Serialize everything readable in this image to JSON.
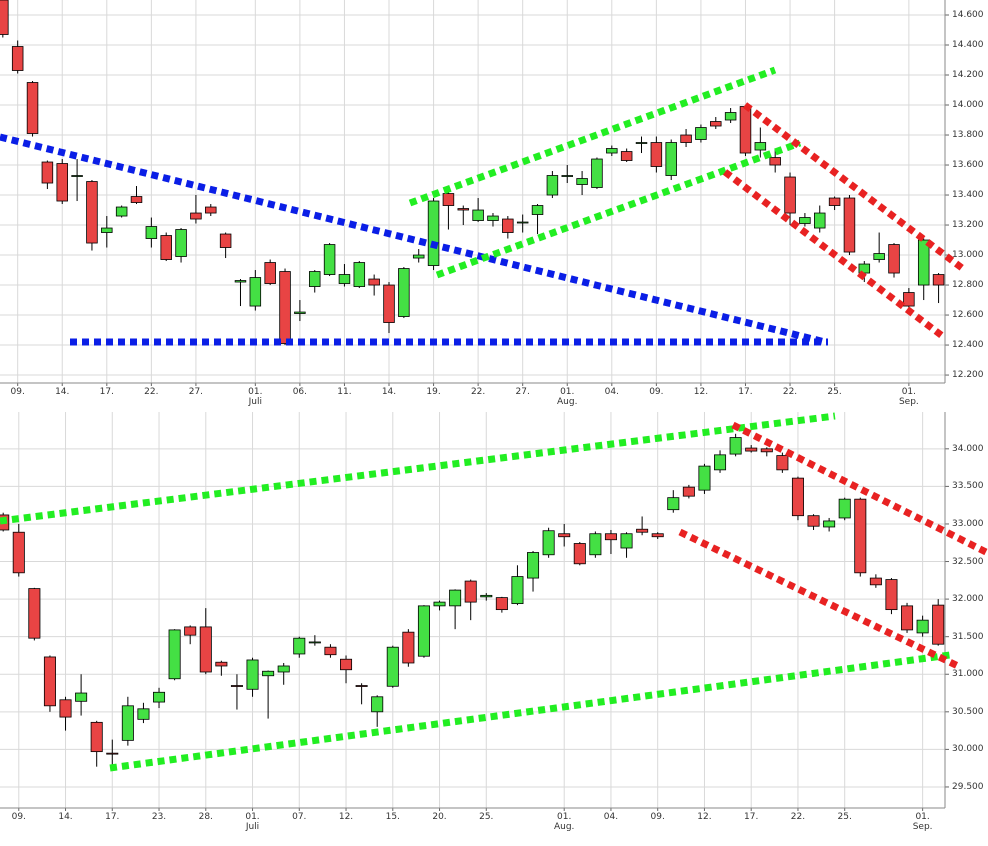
{
  "chart_data": [
    {
      "type": "candlestick",
      "up_color": "#44e044",
      "down_color": "#e84444",
      "grid": true,
      "categories": [
        null,
        "09.",
        null,
        null,
        "14.",
        null,
        null,
        "17.",
        null,
        null,
        "22.",
        null,
        null,
        "27.",
        null,
        null,
        null,
        "01.\nJuli",
        null,
        null,
        "06.",
        null,
        null,
        "11.",
        null,
        null,
        "14.",
        null,
        null,
        "19.",
        null,
        null,
        "22.",
        null,
        null,
        "27.",
        null,
        null,
        "01.\nAug.",
        null,
        null,
        "04.",
        null,
        null,
        "09.",
        null,
        null,
        "12.",
        null,
        null,
        "17.",
        null,
        null,
        "22.",
        null,
        null,
        "25.",
        null,
        null,
        null,
        null,
        "01.\nSep.",
        null,
        null
      ],
      "series": [
        {
          "name": "open",
          "values": [
            14.7,
            14.39,
            14.15,
            13.62,
            13.61,
            13.53,
            13.49,
            13.15,
            13.26,
            13.39,
            13.11,
            13.13,
            12.99,
            13.28,
            13.32,
            13.14,
            12.82,
            12.66,
            12.95,
            12.89,
            12.61,
            12.79,
            12.87,
            12.81,
            12.79,
            12.84,
            12.8,
            12.59,
            12.98,
            12.93,
            13.41,
            13.31,
            13.23,
            13.23,
            13.24,
            13.22,
            13.27,
            13.4,
            13.53,
            13.47,
            13.45,
            13.68,
            13.69,
            13.75,
            13.75,
            13.53,
            13.8,
            13.77,
            13.89,
            13.9,
            13.99,
            13.7,
            13.65,
            13.52,
            13.21,
            13.18,
            13.38,
            13.38,
            12.88,
            12.97,
            13.07,
            12.75,
            12.8,
            12.87
          ]
        },
        {
          "name": "high",
          "values": [
            14.7,
            14.43,
            14.16,
            13.63,
            13.64,
            13.64,
            13.5,
            13.26,
            13.33,
            13.46,
            13.25,
            13.15,
            13.18,
            13.4,
            13.34,
            13.15,
            12.84,
            12.9,
            12.97,
            12.91,
            12.7,
            12.9,
            13.08,
            12.94,
            12.96,
            12.87,
            12.82,
            12.92,
            13.04,
            13.38,
            13.45,
            13.33,
            13.38,
            13.28,
            13.26,
            13.27,
            13.34,
            13.56,
            13.6,
            13.56,
            13.65,
            13.73,
            13.71,
            13.79,
            13.79,
            13.77,
            13.84,
            13.87,
            13.92,
            13.98,
            14.0,
            13.85,
            13.7,
            13.55,
            13.28,
            13.33,
            13.39,
            13.4,
            12.96,
            13.15,
            13.08,
            12.78,
            13.11,
            12.88
          ]
        },
        {
          "name": "low",
          "values": [
            14.45,
            14.21,
            13.79,
            13.44,
            13.34,
            13.36,
            13.03,
            13.05,
            13.25,
            13.34,
            13.05,
            12.96,
            12.95,
            13.21,
            13.26,
            12.98,
            12.66,
            12.63,
            12.8,
            12.4,
            12.56,
            12.75,
            12.86,
            12.79,
            12.78,
            12.73,
            12.48,
            12.58,
            12.95,
            12.9,
            13.17,
            13.2,
            13.22,
            13.19,
            13.11,
            13.15,
            13.14,
            13.38,
            13.48,
            13.4,
            13.44,
            13.66,
            13.62,
            13.68,
            13.55,
            13.5,
            13.72,
            13.75,
            13.84,
            13.88,
            13.66,
            13.65,
            13.55,
            13.2,
            13.19,
            13.15,
            13.3,
            13.0,
            12.82,
            12.95,
            12.85,
            12.64,
            12.7,
            12.68
          ]
        },
        {
          "name": "close",
          "values": [
            14.47,
            14.23,
            13.81,
            13.48,
            13.36,
            13.53,
            13.08,
            13.18,
            13.32,
            13.35,
            13.19,
            12.97,
            13.17,
            13.24,
            13.28,
            13.05,
            12.83,
            12.85,
            12.81,
            12.41,
            12.62,
            12.89,
            13.07,
            12.87,
            12.95,
            12.8,
            12.55,
            12.91,
            13.0,
            13.36,
            13.33,
            13.3,
            13.3,
            13.26,
            13.15,
            13.22,
            13.33,
            13.53,
            13.53,
            13.51,
            13.64,
            13.71,
            13.63,
            13.75,
            13.59,
            13.75,
            13.75,
            13.85,
            13.86,
            13.95,
            13.68,
            13.75,
            13.6,
            13.28,
            13.25,
            13.28,
            13.33,
            13.02,
            12.94,
            13.01,
            12.88,
            12.66,
            13.1,
            12.8
          ]
        }
      ],
      "ylim": [
        12.147,
        14.7
      ],
      "yticks": [
        {
          "value": 12.2,
          "label": "12.200"
        },
        {
          "value": 12.4,
          "label": "12.400"
        },
        {
          "value": 12.6,
          "label": "12.600"
        },
        {
          "value": 12.8,
          "label": "12.800"
        },
        {
          "value": 13.0,
          "label": "13.000"
        },
        {
          "value": 13.2,
          "label": "13.200"
        },
        {
          "value": 13.4,
          "label": "13.400"
        },
        {
          "value": 13.6,
          "label": "13.600"
        },
        {
          "value": 13.8,
          "label": "13.800"
        },
        {
          "value": 14.0,
          "label": "14.000"
        },
        {
          "value": 14.2,
          "label": "14.200"
        },
        {
          "value": 14.4,
          "label": "14.400"
        },
        {
          "value": 14.6,
          "label": "14.600"
        }
      ]
    },
    {
      "type": "candlestick",
      "up_color": "#44e044",
      "down_color": "#e84444",
      "grid": true,
      "categories": [
        null,
        "09.",
        null,
        null,
        "14.",
        null,
        null,
        "17.",
        null,
        null,
        "23.",
        null,
        null,
        "28.",
        null,
        null,
        "01.\nJuli",
        null,
        null,
        "07.",
        null,
        null,
        "12.",
        null,
        null,
        "15.",
        null,
        null,
        "20.",
        null,
        null,
        "25.",
        null,
        null,
        null,
        null,
        "01.\nAug.",
        null,
        null,
        "04.",
        null,
        null,
        "09.",
        null,
        null,
        "12.",
        null,
        null,
        "17.",
        null,
        null,
        "22.",
        null,
        null,
        "25.",
        null,
        null,
        null,
        null,
        "01.\nSep.",
        null
      ],
      "series": [
        {
          "name": "open",
          "values": [
            33.12,
            32.89,
            32.14,
            31.23,
            30.66,
            30.64,
            30.36,
            29.95,
            30.12,
            30.4,
            30.63,
            30.94,
            31.63,
            31.63,
            31.16,
            30.85,
            30.8,
            30.98,
            31.03,
            31.27,
            31.42,
            31.36,
            31.2,
            30.85,
            30.5,
            30.84,
            31.56,
            31.24,
            31.91,
            31.91,
            32.24,
            32.03,
            32.02,
            31.94,
            32.28,
            32.59,
            32.87,
            32.74,
            32.59,
            32.87,
            32.68,
            32.93,
            32.87,
            33.19,
            33.49,
            33.45,
            33.72,
            33.93,
            34.01,
            34.0,
            33.91,
            33.61,
            33.11,
            32.96,
            33.08,
            33.33,
            32.28,
            32.26,
            31.91,
            31.55,
            31.92
          ]
        },
        {
          "name": "high",
          "values": [
            33.15,
            33.0,
            32.15,
            31.25,
            30.7,
            31.0,
            30.38,
            30.13,
            30.7,
            30.62,
            30.82,
            31.6,
            31.65,
            31.88,
            31.18,
            31.0,
            31.22,
            31.05,
            31.15,
            31.5,
            31.52,
            31.4,
            31.25,
            30.88,
            30.72,
            31.38,
            31.6,
            31.92,
            31.98,
            32.13,
            32.26,
            32.08,
            32.03,
            32.45,
            32.64,
            32.95,
            33.0,
            32.76,
            32.9,
            32.92,
            32.89,
            33.1,
            32.89,
            33.45,
            33.52,
            33.8,
            33.98,
            34.2,
            34.05,
            34.02,
            33.95,
            33.63,
            33.13,
            33.08,
            33.35,
            33.35,
            32.33,
            32.28,
            31.95,
            31.78,
            32.0
          ]
        },
        {
          "name": "low",
          "values": [
            32.9,
            32.3,
            31.45,
            30.5,
            30.25,
            30.45,
            29.77,
            29.78,
            30.05,
            30.35,
            30.55,
            30.92,
            31.4,
            31.0,
            30.98,
            30.53,
            30.7,
            30.41,
            30.86,
            31.22,
            31.38,
            31.22,
            30.88,
            30.6,
            30.3,
            30.82,
            31.1,
            31.22,
            31.85,
            31.6,
            31.72,
            31.98,
            31.82,
            31.92,
            32.1,
            32.55,
            32.7,
            32.45,
            32.55,
            32.6,
            32.55,
            32.85,
            32.8,
            33.15,
            33.34,
            33.4,
            33.68,
            33.9,
            33.95,
            33.9,
            33.68,
            33.05,
            32.92,
            32.9,
            33.05,
            32.3,
            32.15,
            31.8,
            31.55,
            31.5,
            31.38
          ]
        },
        {
          "name": "close",
          "values": [
            32.92,
            32.35,
            31.48,
            30.58,
            30.43,
            30.75,
            29.97,
            29.94,
            30.58,
            30.54,
            30.76,
            31.59,
            31.52,
            31.03,
            31.11,
            30.84,
            31.19,
            31.04,
            31.11,
            31.48,
            31.43,
            31.26,
            31.06,
            30.84,
            30.7,
            31.36,
            31.15,
            31.91,
            31.96,
            32.12,
            31.96,
            32.05,
            31.86,
            32.3,
            32.62,
            32.91,
            32.83,
            32.47,
            32.87,
            32.79,
            32.87,
            32.89,
            32.83,
            33.35,
            33.37,
            33.77,
            33.92,
            34.15,
            33.97,
            33.96,
            33.72,
            33.11,
            32.97,
            33.04,
            33.33,
            32.35,
            32.19,
            31.86,
            31.59,
            31.72,
            31.4
          ]
        }
      ],
      "ylim": [
        29.22,
        34.49
      ],
      "yticks": [
        {
          "value": 29.5,
          "label": "29.500"
        },
        {
          "value": 30.0,
          "label": "30.000"
        },
        {
          "value": 30.5,
          "label": "30.500"
        },
        {
          "value": 31.0,
          "label": "31.000"
        },
        {
          "value": 31.5,
          "label": "31.500"
        },
        {
          "value": 32.0,
          "label": "32.000"
        },
        {
          "value": 32.5,
          "label": "32.500"
        },
        {
          "value": 33.0,
          "label": "33.000"
        },
        {
          "value": 33.5,
          "label": "33.500"
        },
        {
          "value": 34.0,
          "label": "34.000"
        }
      ]
    }
  ]
}
